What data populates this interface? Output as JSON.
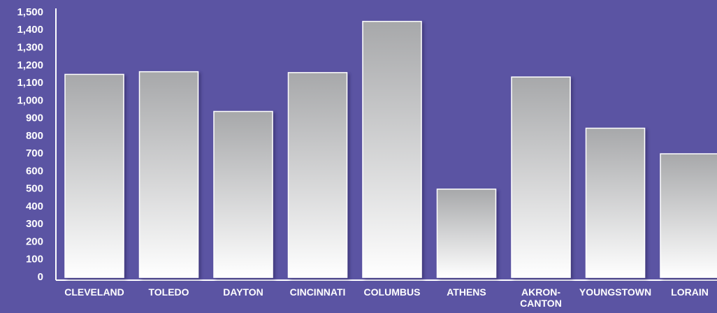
{
  "chart_data": {
    "type": "bar",
    "categories": [
      "CLEVELAND",
      "TOLEDO",
      "DAYTON",
      "CINCINNATI",
      "COLUMBUS",
      "ATHENS",
      "AKRON-\nCANTON",
      "YOUNGSTOWN",
      "LORAIN"
    ],
    "values": [
      1150,
      1165,
      940,
      1160,
      1450,
      500,
      1135,
      845,
      700
    ],
    "color": "#a7a8aa",
    "ylim": [
      0,
      1500
    ],
    "yticks": [
      0,
      100,
      200,
      300,
      400,
      500,
      600,
      700,
      800,
      900,
      {
        "value": 1000,
        "label": "1,000"
      },
      {
        "value": 1100,
        "label": "1,100"
      },
      {
        "value": 1200,
        "label": "1,200"
      },
      {
        "value": 1300,
        "label": "1,300"
      },
      {
        "value": 1400,
        "label": "1,400"
      },
      {
        "value": 1500,
        "label": "1,500"
      }
    ],
    "grid": false
  }
}
